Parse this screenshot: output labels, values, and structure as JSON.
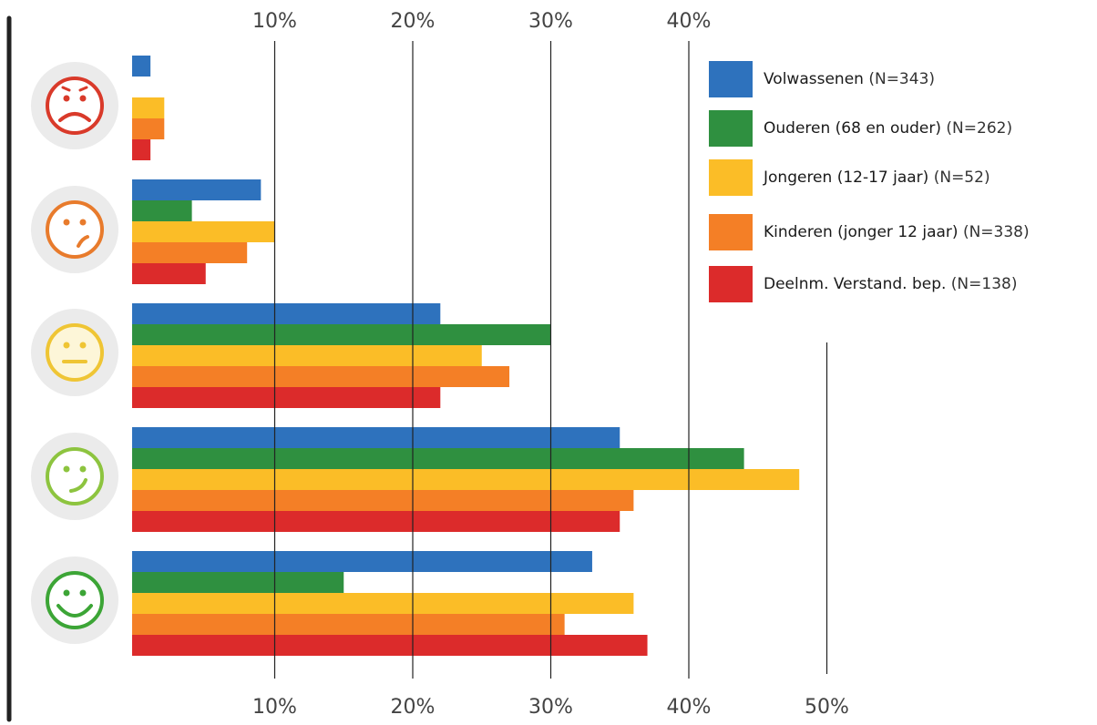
{
  "chart_data": {
    "type": "bar",
    "orientation": "horizontal",
    "categories": [
      "very-unhappy",
      "unhappy",
      "neutral",
      "happy",
      "very-happy"
    ],
    "category_icons": [
      "very-unhappy-face-icon",
      "unhappy-face-icon",
      "neutral-face-icon",
      "happy-face-icon",
      "very-happy-face-icon"
    ],
    "series": [
      {
        "name": "Volwassenen",
        "n_label": "(N=343)",
        "color": "#2e72bd",
        "values": [
          1,
          9,
          22,
          35,
          33
        ]
      },
      {
        "name": "Ouderen (68 en ouder)",
        "n_label": "(N=262)",
        "color": "#2f9040",
        "values": [
          0,
          4,
          30,
          44,
          15
        ]
      },
      {
        "name": "Jongeren (12-17 jaar)",
        "n_label": "(N=52)",
        "color": "#fbbd27",
        "values": [
          2,
          10,
          25,
          48,
          36
        ]
      },
      {
        "name": "Kinderen (jonger 12 jaar)",
        "n_label": "(N=338)",
        "color": "#f47f26",
        "values": [
          2,
          8,
          27,
          36,
          31
        ]
      },
      {
        "name": "Deelnm. Verstand. bep.",
        "n_label": "(N=138)",
        "color": "#dc2b2b",
        "values": [
          1,
          5,
          22,
          35,
          37
        ]
      }
    ],
    "top_ticks": [
      "10%",
      "20%",
      "30%",
      "40%"
    ],
    "bottom_ticks": [
      "10%",
      "20%",
      "30%",
      "40%",
      "50%"
    ],
    "xlim": [
      0,
      50
    ],
    "grid": true,
    "legend_position": "top-right",
    "icon_colors": [
      "#d93a2a",
      "#e87b2c",
      "#efc534",
      "#8dc43f",
      "#3ca536"
    ]
  }
}
